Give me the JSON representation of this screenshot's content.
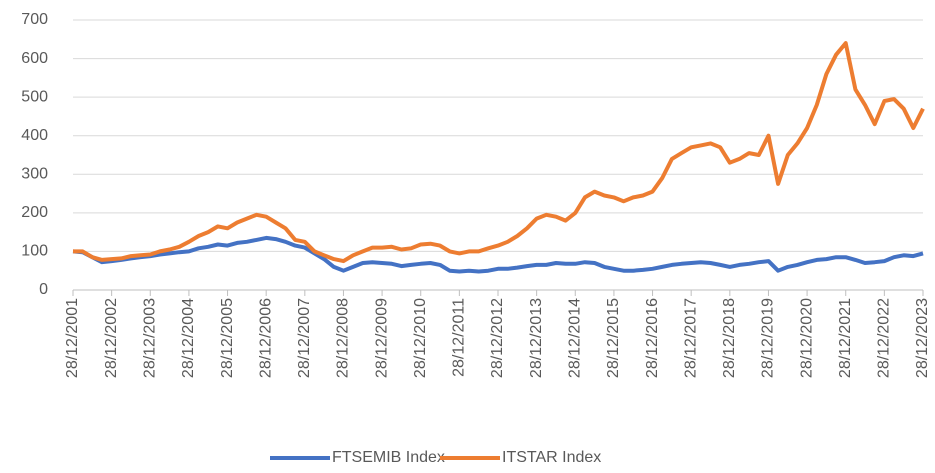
{
  "chart_data": {
    "type": "line",
    "categories": [
      "28/12/2001",
      null,
      null,
      null,
      "28/12/2002",
      null,
      null,
      null,
      "28/12/2003",
      null,
      null,
      null,
      "28/12/2004",
      null,
      null,
      null,
      "28/12/2005",
      null,
      null,
      null,
      "28/12/2006",
      null,
      null,
      null,
      "28/12/2007",
      null,
      null,
      null,
      "28/12/2008",
      null,
      null,
      null,
      "28/12/2009",
      null,
      null,
      null,
      "28/12/2010",
      null,
      null,
      null,
      "28/12/2011",
      null,
      null,
      null,
      "28/12/2012",
      null,
      null,
      null,
      "28/12/2013",
      null,
      null,
      null,
      "28/12/2014",
      null,
      null,
      null,
      "28/12/2015",
      null,
      null,
      null,
      "28/12/2016",
      null,
      null,
      null,
      "28/12/2017",
      null,
      null,
      null,
      "28/12/2018",
      null,
      null,
      null,
      "28/12/2019",
      null,
      null,
      null,
      "28/12/2020",
      null,
      null,
      null,
      "28/12/2021",
      null,
      null,
      null,
      "28/12/2022",
      null,
      null,
      null,
      "28/12/2023"
    ],
    "series": [
      {
        "name": "FTSEMIB Index",
        "color": "#4472c4",
        "values": [
          100,
          98,
          85,
          72,
          75,
          78,
          82,
          85,
          88,
          92,
          95,
          98,
          100,
          108,
          112,
          118,
          115,
          122,
          125,
          130,
          135,
          132,
          125,
          115,
          110,
          95,
          80,
          60,
          50,
          60,
          70,
          72,
          70,
          68,
          62,
          65,
          68,
          70,
          65,
          50,
          48,
          50,
          48,
          50,
          55,
          55,
          58,
          62,
          65,
          65,
          70,
          68,
          68,
          72,
          70,
          60,
          55,
          50,
          50,
          52,
          55,
          60,
          65,
          68,
          70,
          72,
          70,
          65,
          60,
          65,
          68,
          72,
          75,
          50,
          60,
          65,
          72,
          78,
          80,
          85,
          85,
          78,
          70,
          72,
          75,
          85,
          90,
          88,
          95
        ]
      },
      {
        "name": "ITSTAR Index",
        "color": "#ed7d31",
        "values": [
          100,
          100,
          85,
          78,
          80,
          82,
          88,
          90,
          92,
          100,
          105,
          112,
          125,
          140,
          150,
          165,
          160,
          175,
          185,
          195,
          190,
          175,
          160,
          130,
          125,
          100,
          90,
          80,
          75,
          90,
          100,
          110,
          110,
          112,
          105,
          108,
          118,
          120,
          115,
          100,
          95,
          100,
          100,
          108,
          115,
          125,
          140,
          160,
          185,
          195,
          190,
          180,
          200,
          240,
          255,
          245,
          240,
          230,
          240,
          245,
          255,
          290,
          340,
          355,
          370,
          375,
          380,
          370,
          330,
          340,
          355,
          350,
          400,
          275,
          350,
          380,
          420,
          480,
          560,
          610,
          640,
          520,
          480,
          430,
          490,
          495,
          470,
          420,
          470
        ]
      }
    ],
    "ylim": [
      0,
      700
    ],
    "yticks": [
      0,
      100,
      200,
      300,
      400,
      500,
      600,
      700
    ],
    "grid": true,
    "legend": "bottom"
  }
}
